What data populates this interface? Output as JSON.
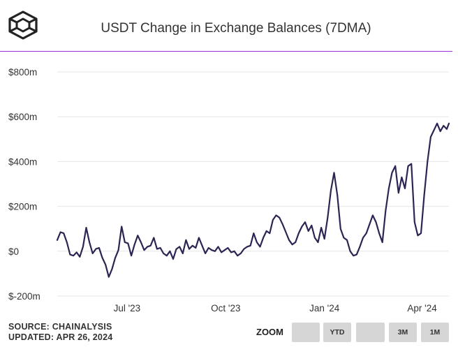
{
  "header": {
    "title": "USDT Change in Exchange Balances (7DMA)"
  },
  "footer": {
    "source": "SOURCE: CHAINALYSIS",
    "updated": "UPDATED: APR 26, 2024"
  },
  "zoom": {
    "label": "ZOOM",
    "buttons": [
      "",
      "YTD",
      "",
      "3M",
      "1M"
    ]
  },
  "colors": {
    "line": "#2b2553",
    "accent_rule": "#9b30d9",
    "grid": "#e6e6e6",
    "button_bg": "#d6d6d6"
  },
  "chart_data": {
    "type": "line",
    "title": "USDT Change in Exchange Balances (7DMA)",
    "ylabel": "",
    "xlabel": "",
    "y_unit": "$m",
    "ylim": [
      -200,
      800
    ],
    "yticks": [
      -200,
      0,
      200,
      400,
      600,
      800
    ],
    "ytick_labels": [
      "$-200m",
      "$0",
      "$200m",
      "$400m",
      "$600m",
      "$800m"
    ],
    "xlim": [
      "2023-04-27",
      "2024-04-26"
    ],
    "xticks": [
      "2023-07-01",
      "2023-10-01",
      "2024-01-01",
      "2024-04-01"
    ],
    "xtick_labels": [
      "Jul '23",
      "Oct '23",
      "Jan '24",
      "Apr '24"
    ],
    "grid": "horizontal",
    "series": [
      {
        "name": "",
        "points": [
          [
            "2023-04-27",
            50
          ],
          [
            "2023-04-30",
            85
          ],
          [
            "2023-05-03",
            80
          ],
          [
            "2023-05-06",
            40
          ],
          [
            "2023-05-09",
            -15
          ],
          [
            "2023-05-12",
            -20
          ],
          [
            "2023-05-15",
            -5
          ],
          [
            "2023-05-18",
            -25
          ],
          [
            "2023-05-21",
            20
          ],
          [
            "2023-05-24",
            105
          ],
          [
            "2023-05-27",
            40
          ],
          [
            "2023-05-30",
            -10
          ],
          [
            "2023-06-02",
            10
          ],
          [
            "2023-06-05",
            15
          ],
          [
            "2023-06-08",
            -30
          ],
          [
            "2023-06-11",
            -60
          ],
          [
            "2023-06-14",
            -115
          ],
          [
            "2023-06-17",
            -80
          ],
          [
            "2023-06-20",
            -30
          ],
          [
            "2023-06-23",
            5
          ],
          [
            "2023-06-26",
            110
          ],
          [
            "2023-06-29",
            40
          ],
          [
            "2023-07-02",
            35
          ],
          [
            "2023-07-05",
            -20
          ],
          [
            "2023-07-08",
            30
          ],
          [
            "2023-07-11",
            70
          ],
          [
            "2023-07-14",
            40
          ],
          [
            "2023-07-17",
            5
          ],
          [
            "2023-07-20",
            20
          ],
          [
            "2023-07-23",
            25
          ],
          [
            "2023-07-26",
            60
          ],
          [
            "2023-07-29",
            10
          ],
          [
            "2023-08-01",
            15
          ],
          [
            "2023-08-04",
            -10
          ],
          [
            "2023-08-07",
            -20
          ],
          [
            "2023-08-10",
            0
          ],
          [
            "2023-08-13",
            -35
          ],
          [
            "2023-08-16",
            10
          ],
          [
            "2023-08-19",
            20
          ],
          [
            "2023-08-22",
            -10
          ],
          [
            "2023-08-25",
            50
          ],
          [
            "2023-08-28",
            10
          ],
          [
            "2023-08-31",
            25
          ],
          [
            "2023-09-03",
            15
          ],
          [
            "2023-09-06",
            60
          ],
          [
            "2023-09-09",
            25
          ],
          [
            "2023-09-12",
            -10
          ],
          [
            "2023-09-15",
            15
          ],
          [
            "2023-09-18",
            5
          ],
          [
            "2023-09-21",
            0
          ],
          [
            "2023-09-24",
            20
          ],
          [
            "2023-09-27",
            -5
          ],
          [
            "2023-09-30",
            5
          ],
          [
            "2023-10-03",
            15
          ],
          [
            "2023-10-06",
            -5
          ],
          [
            "2023-10-09",
            0
          ],
          [
            "2023-10-12",
            -20
          ],
          [
            "2023-10-15",
            -10
          ],
          [
            "2023-10-18",
            10
          ],
          [
            "2023-10-21",
            20
          ],
          [
            "2023-10-24",
            25
          ],
          [
            "2023-10-27",
            80
          ],
          [
            "2023-10-30",
            40
          ],
          [
            "2023-11-02",
            20
          ],
          [
            "2023-11-05",
            60
          ],
          [
            "2023-11-08",
            90
          ],
          [
            "2023-11-11",
            80
          ],
          [
            "2023-11-14",
            140
          ],
          [
            "2023-11-17",
            160
          ],
          [
            "2023-11-20",
            150
          ],
          [
            "2023-11-23",
            120
          ],
          [
            "2023-11-26",
            85
          ],
          [
            "2023-11-29",
            50
          ],
          [
            "2023-12-02",
            30
          ],
          [
            "2023-12-05",
            40
          ],
          [
            "2023-12-08",
            80
          ],
          [
            "2023-12-11",
            110
          ],
          [
            "2023-12-14",
            130
          ],
          [
            "2023-12-17",
            90
          ],
          [
            "2023-12-20",
            115
          ],
          [
            "2023-12-23",
            60
          ],
          [
            "2023-12-26",
            40
          ],
          [
            "2023-12-29",
            105
          ],
          [
            "2024-01-01",
            55
          ],
          [
            "2024-01-04",
            150
          ],
          [
            "2024-01-07",
            270
          ],
          [
            "2024-01-10",
            350
          ],
          [
            "2024-01-13",
            250
          ],
          [
            "2024-01-16",
            100
          ],
          [
            "2024-01-19",
            60
          ],
          [
            "2024-01-22",
            50
          ],
          [
            "2024-01-25",
            0
          ],
          [
            "2024-01-28",
            -20
          ],
          [
            "2024-01-31",
            -15
          ],
          [
            "2024-02-03",
            20
          ],
          [
            "2024-02-06",
            60
          ],
          [
            "2024-02-09",
            80
          ],
          [
            "2024-02-12",
            120
          ],
          [
            "2024-02-15",
            160
          ],
          [
            "2024-02-18",
            130
          ],
          [
            "2024-02-21",
            80
          ],
          [
            "2024-02-24",
            40
          ],
          [
            "2024-02-27",
            180
          ],
          [
            "2024-03-01",
            280
          ],
          [
            "2024-03-04",
            350
          ],
          [
            "2024-03-07",
            380
          ],
          [
            "2024-03-10",
            260
          ],
          [
            "2024-03-13",
            330
          ],
          [
            "2024-03-16",
            280
          ],
          [
            "2024-03-19",
            380
          ],
          [
            "2024-03-22",
            390
          ],
          [
            "2024-03-25",
            130
          ],
          [
            "2024-03-28",
            70
          ],
          [
            "2024-03-31",
            80
          ],
          [
            "2024-04-03",
            250
          ],
          [
            "2024-04-06",
            400
          ],
          [
            "2024-04-09",
            510
          ],
          [
            "2024-04-12",
            540
          ],
          [
            "2024-04-15",
            570
          ],
          [
            "2024-04-18",
            535
          ],
          [
            "2024-04-21",
            560
          ],
          [
            "2024-04-24",
            545
          ],
          [
            "2024-04-26",
            570
          ]
        ]
      }
    ]
  }
}
